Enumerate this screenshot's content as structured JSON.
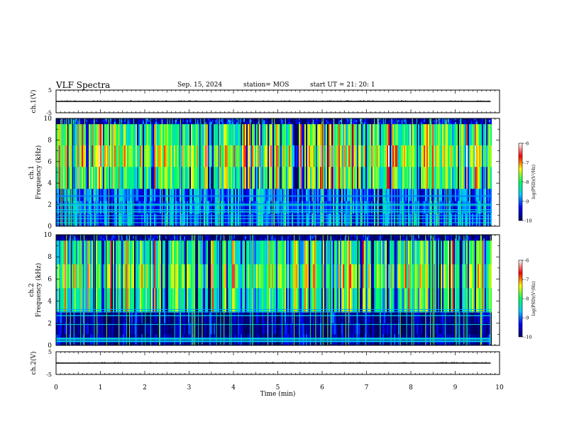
{
  "header": {
    "title": "VLF Spectra",
    "date": "Sep. 15, 2024",
    "station": "station= MOS",
    "start_ut": "start UT =   21: 20: 1"
  },
  "chart_data": [
    {
      "type": "line",
      "title": "",
      "ylabel": "ch.1(V)",
      "xlabel": "",
      "xlim": [
        0,
        10
      ],
      "ylim": [
        -5,
        5
      ],
      "y_ticks": [
        "5",
        "-5"
      ],
      "series": [
        {
          "x": [
            0,
            9.8
          ],
          "y": [
            0,
            0
          ]
        }
      ]
    },
    {
      "type": "heatmap",
      "title": "",
      "ylabel": "ch.1 Frequency (kHz)",
      "xlim": [
        0,
        10
      ],
      "ylim": [
        0,
        10
      ],
      "y_ticks": [
        "0",
        "2",
        "4",
        "6",
        "8",
        "10"
      ],
      "data_end_min": 9.8,
      "colorbar": {
        "label": "log(PSD)(V²/Hz)",
        "range": [
          -10,
          -6
        ],
        "ticks": [
          "-6",
          "-7",
          "-8",
          "-9",
          "-10"
        ],
        "colors": [
          "#000060",
          "#0000ff",
          "#00c8ff",
          "#00ff60",
          "#ffff00",
          "#ff0000",
          "#ffffff"
        ]
      },
      "bands": [
        {
          "from_khz": 0,
          "to_khz": 3.5,
          "level": -9.1
        },
        {
          "from_khz": 3.5,
          "to_khz": 9.5,
          "level": -7.6
        },
        {
          "from_khz": 9.5,
          "to_khz": 10,
          "level": -9.6
        }
      ]
    },
    {
      "type": "heatmap",
      "title": "",
      "ylabel": "ch.2 Frequency (kHz)",
      "xlim": [
        0,
        10
      ],
      "ylim": [
        0,
        10
      ],
      "y_ticks": [
        "0",
        "2",
        "4",
        "6",
        "8",
        "10"
      ],
      "data_end_min": 9.8,
      "colorbar": {
        "label": "log(PSD)(V²/Hz)",
        "range": [
          -10,
          -6
        ],
        "ticks": [
          "-6",
          "-7",
          "-8",
          "-9",
          "-10"
        ],
        "colors": [
          "#000060",
          "#0000ff",
          "#00c8ff",
          "#00ff60",
          "#ffff00",
          "#ff0000",
          "#ffffff"
        ]
      },
      "bands": [
        {
          "from_khz": 0,
          "to_khz": 3.0,
          "level": -9.8
        },
        {
          "from_khz": 3.0,
          "to_khz": 9.5,
          "level": -7.8
        },
        {
          "from_khz": 9.5,
          "to_khz": 10,
          "level": -9.8
        }
      ]
    },
    {
      "type": "line",
      "title": "",
      "ylabel": "ch.2(V)",
      "xlabel": "Time (min)",
      "xlim": [
        0,
        10
      ],
      "ylim": [
        -5,
        5
      ],
      "y_ticks": [
        "5",
        "-5"
      ],
      "x_ticks": [
        "0",
        "1",
        "2",
        "3",
        "4",
        "5",
        "6",
        "7",
        "8",
        "9",
        "10"
      ],
      "series": [
        {
          "x": [
            0,
            9.8
          ],
          "y": [
            0,
            0
          ]
        }
      ]
    }
  ]
}
